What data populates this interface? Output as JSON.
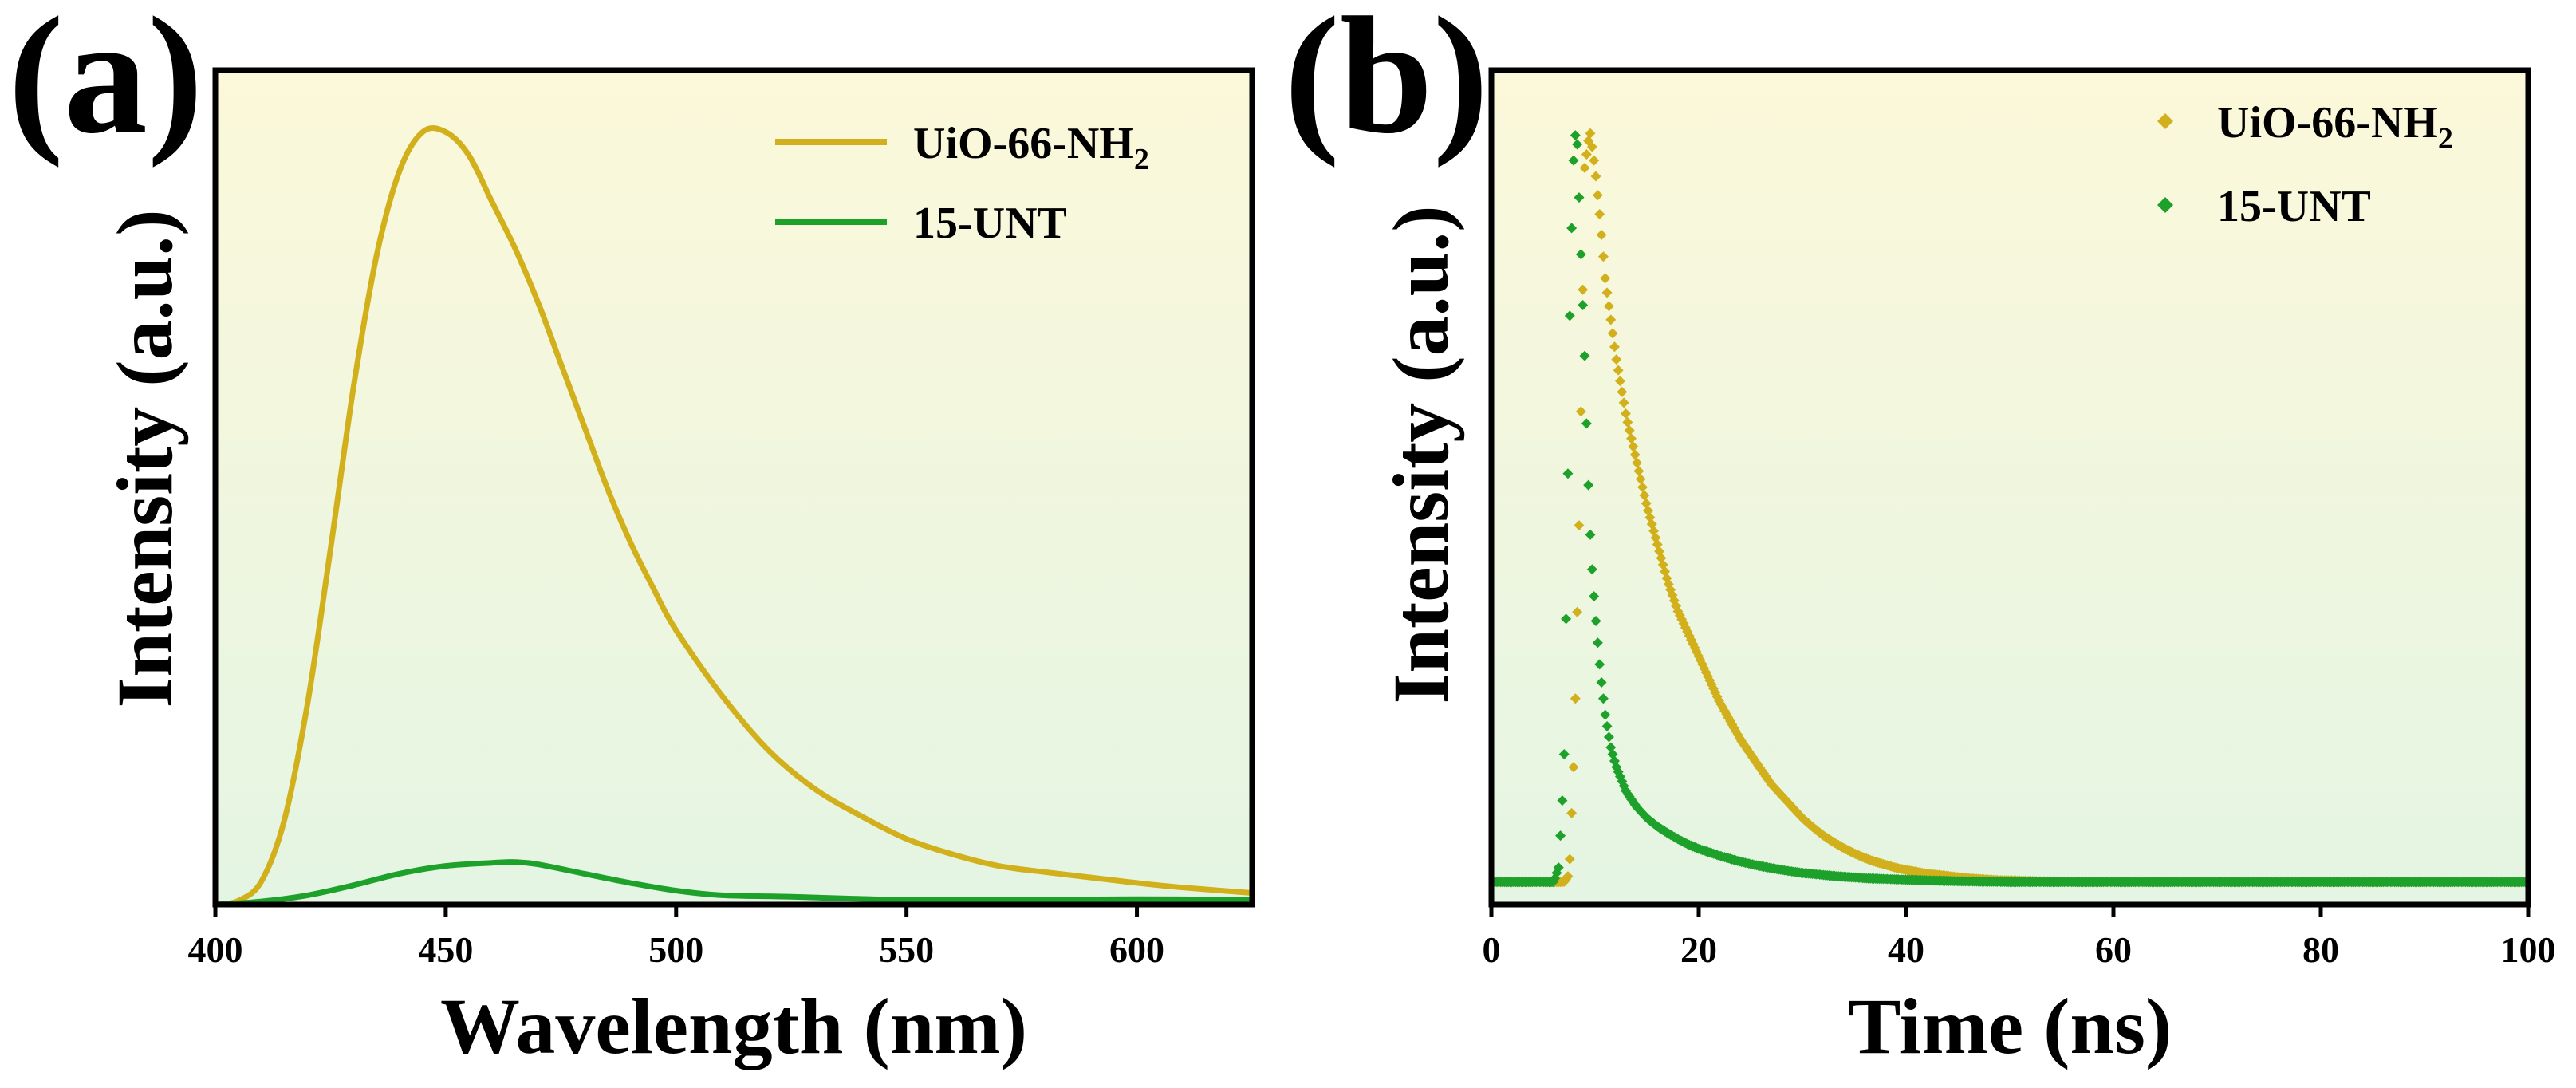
{
  "chart_data": [
    {
      "panel": "(a)",
      "type": "line",
      "xlabel": "Wavelength (nm)",
      "ylabel": "Intensity (a.u.)",
      "xlim": [
        400,
        625
      ],
      "ylim": [
        0,
        1.08
      ],
      "xticks": [
        "400",
        "450",
        "500",
        "550",
        "600"
      ],
      "xtick_values": [
        400,
        450,
        500,
        550,
        600
      ],
      "legend_position": "top-right",
      "series": [
        {
          "name": "UiO-66-NH",
          "name_sub": "2",
          "color": "#d1b01c",
          "x": [
            400,
            405,
            410,
            415,
            420,
            425,
            430,
            435,
            440,
            445,
            450,
            455,
            460,
            465,
            470,
            475,
            480,
            485,
            490,
            495,
            500,
            510,
            520,
            530,
            540,
            550,
            560,
            570,
            580,
            590,
            600,
            610,
            625
          ],
          "y": [
            0.0,
            0.005,
            0.03,
            0.11,
            0.26,
            0.46,
            0.67,
            0.84,
            0.95,
            1.0,
            1.0,
            0.97,
            0.91,
            0.85,
            0.78,
            0.7,
            0.62,
            0.54,
            0.47,
            0.41,
            0.355,
            0.27,
            0.2,
            0.15,
            0.115,
            0.085,
            0.065,
            0.05,
            0.042,
            0.035,
            0.028,
            0.022,
            0.015
          ]
        },
        {
          "name": "15-UNT",
          "color": "#1ea12a",
          "x": [
            400,
            410,
            420,
            430,
            440,
            450,
            460,
            465,
            470,
            480,
            490,
            500,
            510,
            525,
            550,
            575,
            600,
            625
          ],
          "y": [
            0.0,
            0.004,
            0.012,
            0.025,
            0.04,
            0.05,
            0.054,
            0.055,
            0.052,
            0.04,
            0.028,
            0.018,
            0.012,
            0.01,
            0.006,
            0.006,
            0.007,
            0.006
          ]
        }
      ]
    },
    {
      "panel": "(b)",
      "type": "scatter",
      "xlabel": "Time (ns)",
      "ylabel": "Intensity (a.u.)",
      "xlim": [
        0,
        100
      ],
      "ylim": [
        -0.03,
        1.08
      ],
      "xticks": [
        "0",
        "20",
        "40",
        "60",
        "80",
        "100"
      ],
      "xtick_values": [
        0,
        20,
        40,
        60,
        80,
        100
      ],
      "legend_position": "top-right",
      "series": [
        {
          "name": "UiO-66-NH",
          "name_sub": "2",
          "color": "#d1b01c",
          "x": [
            0,
            1,
            2,
            3,
            4,
            5,
            6,
            7,
            7.5,
            8,
            8.5,
            9,
            9.5,
            10,
            10.5,
            11,
            11.5,
            12,
            13,
            14,
            15,
            16,
            17,
            18,
            19,
            20,
            21,
            22,
            23,
            24,
            25,
            26,
            27,
            28,
            29,
            30,
            31,
            32,
            33,
            34,
            35,
            36,
            37,
            38,
            39,
            40,
            42,
            44,
            46,
            48,
            50,
            53,
            56,
            60,
            64,
            68,
            72,
            76,
            80,
            84,
            88,
            92,
            96,
            100
          ],
          "y": [
            0.0,
            0.0,
            0.0,
            0.0,
            0.0,
            0.0,
            0.0,
            0.0,
            0.01,
            0.18,
            0.5,
            0.95,
            1.0,
            0.95,
            0.88,
            0.8,
            0.75,
            0.7,
            0.62,
            0.56,
            0.5,
            0.45,
            0.4,
            0.36,
            0.33,
            0.3,
            0.27,
            0.24,
            0.215,
            0.19,
            0.17,
            0.15,
            0.13,
            0.115,
            0.1,
            0.085,
            0.073,
            0.062,
            0.053,
            0.045,
            0.038,
            0.032,
            0.027,
            0.023,
            0.019,
            0.016,
            0.011,
            0.008,
            0.005,
            0.003,
            0.002,
            0.001,
            0.0,
            0.0,
            0.0,
            0.0,
            0.0,
            0.0,
            0.0,
            0.0,
            0.0,
            0.0,
            0.0,
            0.0
          ]
        },
        {
          "name": "15-UNT",
          "color": "#1ea12a",
          "x": [
            0,
            1,
            2,
            3,
            4,
            5,
            6,
            6.5,
            7,
            7.3,
            7.6,
            8,
            8.3,
            8.6,
            9,
            9.3,
            9.6,
            10,
            10.5,
            11,
            11.5,
            12,
            13,
            14,
            15,
            16,
            17,
            18,
            19,
            20,
            22,
            24,
            26,
            28,
            30,
            33,
            36,
            40,
            45,
            50,
            55,
            60,
            65,
            70,
            75,
            80,
            85,
            90,
            95,
            100
          ],
          "y": [
            0.0,
            0.0,
            0.0,
            0.0,
            0.0,
            0.0,
            0.0,
            0.02,
            0.15,
            0.45,
            0.8,
            1.0,
            0.98,
            0.85,
            0.7,
            0.55,
            0.44,
            0.36,
            0.28,
            0.22,
            0.18,
            0.155,
            0.12,
            0.1,
            0.085,
            0.074,
            0.065,
            0.057,
            0.05,
            0.044,
            0.035,
            0.027,
            0.021,
            0.016,
            0.012,
            0.008,
            0.005,
            0.003,
            0.001,
            0.0,
            0.0,
            0.0,
            0.0,
            0.0,
            0.0,
            0.0,
            0.0,
            0.0,
            0.0,
            0.0
          ]
        }
      ]
    }
  ]
}
